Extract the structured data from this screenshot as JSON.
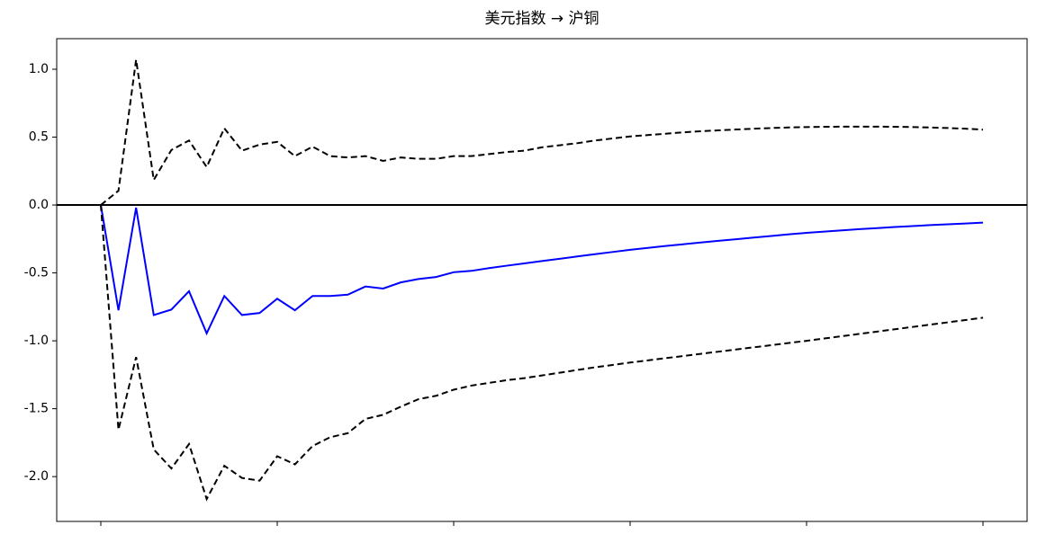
{
  "chart_data": {
    "type": "line",
    "title": "美元指数 → 沪铜",
    "x": [
      0,
      1,
      2,
      3,
      4,
      5,
      6,
      7,
      8,
      9,
      10,
      11,
      12,
      13,
      14,
      15,
      16,
      17,
      18,
      19,
      20,
      21,
      22,
      23,
      24,
      25,
      26,
      27,
      28,
      29,
      30,
      31,
      32,
      33,
      34,
      35,
      36,
      37,
      38,
      39,
      40,
      41,
      42,
      43,
      44,
      45,
      46,
      47,
      48,
      49,
      50
    ],
    "series": [
      {
        "color": "#0000ff",
        "style": "solid",
        "values": [
          0,
          -0.775,
          -0.02,
          -0.81,
          -0.77,
          -0.635,
          -0.945,
          -0.67,
          -0.81,
          -0.795,
          -0.69,
          -0.775,
          -0.67,
          -0.67,
          -0.66,
          -0.6,
          -0.615,
          -0.57,
          -0.545,
          -0.53,
          -0.495,
          -0.485,
          -0.465,
          -0.447,
          -0.43,
          -0.413,
          -0.396,
          -0.379,
          -0.362,
          -0.346,
          -0.33,
          -0.316,
          -0.302,
          -0.289,
          -0.276,
          -0.264,
          -0.252,
          -0.24,
          -0.228,
          -0.216,
          -0.205,
          -0.196,
          -0.187,
          -0.178,
          -0.17,
          -0.162,
          -0.155,
          -0.148,
          -0.142,
          -0.136,
          -0.13
        ]
      },
      {
        "color": "#000000",
        "style": "dashed",
        "values": [
          0,
          0.105,
          1.07,
          0.185,
          0.405,
          0.475,
          0.28,
          0.565,
          0.4,
          0.445,
          0.465,
          0.36,
          0.43,
          0.36,
          0.35,
          0.36,
          0.325,
          0.35,
          0.34,
          0.34,
          0.36,
          0.36,
          0.375,
          0.39,
          0.4,
          0.425,
          0.44,
          0.455,
          0.475,
          0.49,
          0.505,
          0.515,
          0.525,
          0.535,
          0.543,
          0.55,
          0.556,
          0.562,
          0.567,
          0.571,
          0.574,
          0.576,
          0.577,
          0.577,
          0.577,
          0.576,
          0.574,
          0.571,
          0.567,
          0.562,
          0.555
        ]
      },
      {
        "color": "#000000",
        "style": "dashed",
        "values": [
          0,
          -1.655,
          -1.12,
          -1.8,
          -1.94,
          -1.76,
          -2.165,
          -1.92,
          -2.01,
          -2.03,
          -1.85,
          -1.91,
          -1.775,
          -1.71,
          -1.68,
          -1.575,
          -1.545,
          -1.485,
          -1.43,
          -1.405,
          -1.36,
          -1.33,
          -1.31,
          -1.29,
          -1.275,
          -1.255,
          -1.235,
          -1.215,
          -1.195,
          -1.178,
          -1.16,
          -1.144,
          -1.128,
          -1.112,
          -1.096,
          -1.08,
          -1.064,
          -1.048,
          -1.032,
          -1.016,
          -1,
          -0.983,
          -0.966,
          -0.949,
          -0.932,
          -0.915,
          -0.898,
          -0.881,
          -0.864,
          -0.847,
          -0.83
        ]
      }
    ],
    "hline": 0,
    "xlim": [
      -2.5,
      52.5
    ],
    "xticks": [
      0,
      10,
      20,
      30,
      40,
      50
    ],
    "ylim": [
      -2.33,
      1.225
    ],
    "yticks": [
      {
        "value": 1,
        "label": "1.0"
      },
      0.5,
      {
        "value": 0,
        "label": "0.0"
      },
      -0.5,
      {
        "value": -1,
        "label": "-1.0"
      },
      -1.5,
      {
        "value": -2,
        "label": "-2.0"
      }
    ],
    "grid": false
  }
}
